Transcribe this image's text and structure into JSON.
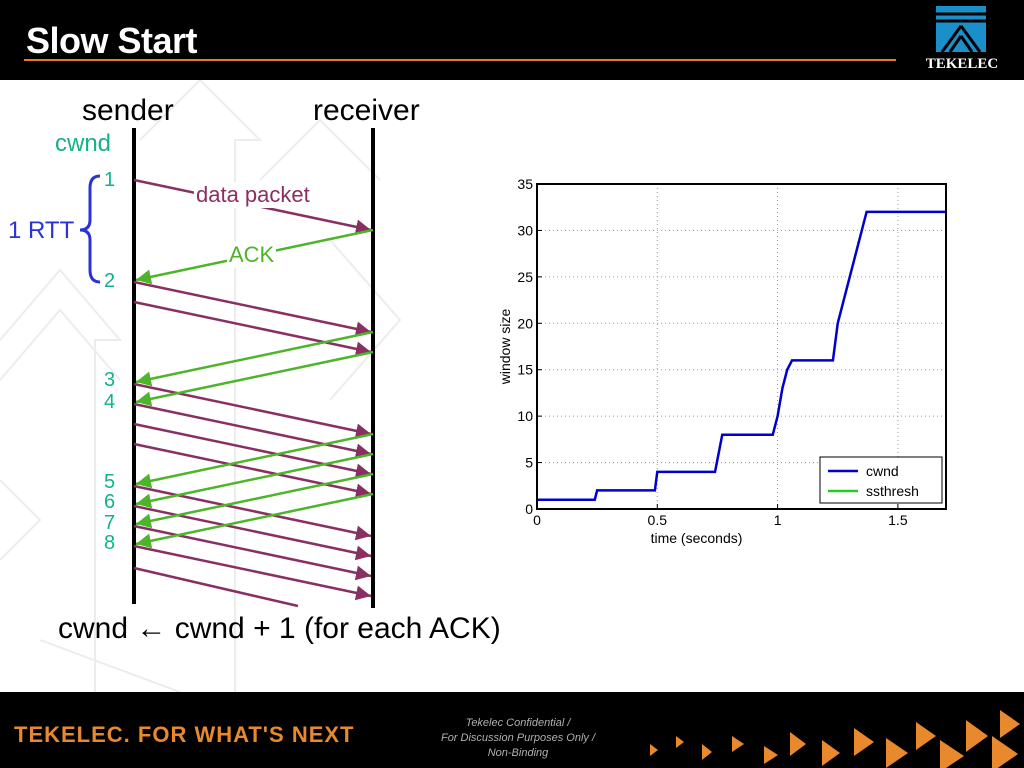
{
  "header": {
    "title": "Slow Start",
    "logo_text": "TEKELEC"
  },
  "diagram": {
    "sender_label": "sender",
    "receiver_label": "receiver",
    "cwnd_label": "cwnd",
    "rtt_label": "1 RTT",
    "data_packet_label": "data packet",
    "ack_label": "ACK",
    "cwnd_numbers": [
      "1",
      "2",
      "3",
      "4",
      "5",
      "6",
      "7",
      "8"
    ],
    "colors": {
      "data": "#8a2f62",
      "ack": "#4cb52a",
      "cwnd": "#12b28c",
      "rtt": "#2a33d6"
    }
  },
  "formula": "cwnd ← cwnd + 1 (for each ACK)",
  "chart_data": {
    "type": "line",
    "xlabel": "time (seconds)",
    "ylabel": "window size",
    "xlim": [
      0,
      1.7
    ],
    "ylim": [
      0,
      35
    ],
    "x_ticks": [
      0,
      0.5,
      1,
      1.5
    ],
    "x_tick_labels": [
      "0",
      "0.5",
      "1",
      "1.5"
    ],
    "y_ticks": [
      0,
      5,
      10,
      15,
      20,
      25,
      30,
      35
    ],
    "y_tick_labels": [
      "0",
      "5",
      "10",
      "15",
      "20",
      "25",
      "30",
      "35"
    ],
    "grid": true,
    "legend_position": "bottom-right",
    "series": [
      {
        "name": "cwnd",
        "color": "#0000cc",
        "x": [
          0,
          0.24,
          0.25,
          0.49,
          0.5,
          0.74,
          0.77,
          0.98,
          1.0,
          1.02,
          1.04,
          1.06,
          1.23,
          1.25,
          1.27,
          1.3,
          1.32,
          1.35,
          1.37,
          1.7
        ],
        "y": [
          1,
          1,
          2,
          2,
          4,
          4,
          8,
          8,
          10,
          13,
          15,
          16,
          16,
          20,
          22,
          25,
          27,
          30,
          32,
          32
        ]
      },
      {
        "name": "ssthresh",
        "color": "#22cc22",
        "x": [],
        "y": []
      }
    ]
  },
  "footer": {
    "tagline": "TEKELEC. FOR WHAT'S NEXT",
    "confidential_lines": [
      "Tekelec Confidential /",
      "For Discussion Purposes Only /",
      "Non-Binding"
    ]
  }
}
